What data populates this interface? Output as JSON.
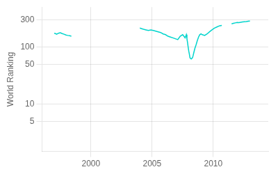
{
  "chart_data": {
    "type": "line",
    "ylabel": "World Ranking",
    "color": "#00d4cc",
    "log": "y",
    "grid": true,
    "xlim": [
      1996.0,
      2014.5
    ],
    "ylim": [
      1.5,
      500
    ],
    "xticks": [
      2000,
      2005,
      2010
    ],
    "yticks": [
      5,
      10,
      50,
      100,
      300
    ],
    "series": [
      {
        "x": [
          1997.0,
          1997.1,
          1997.2,
          1997.35,
          1997.5,
          1997.65,
          1997.8,
          1997.95,
          1998.1,
          1998.25,
          1998.4
        ],
        "values": [
          175,
          172,
          168,
          175,
          178,
          172,
          168,
          163,
          160,
          158,
          155
        ]
      },
      {
        "x": [
          2004.0,
          2004.15,
          2004.3,
          2004.5,
          2004.7,
          2004.9,
          2005.1,
          2005.3,
          2005.5,
          2005.7,
          2005.9,
          2006.1,
          2006.3,
          2006.5,
          2006.7,
          2006.9,
          2007.1,
          2007.3,
          2007.5,
          2007.6,
          2007.7,
          2007.8,
          2007.85,
          2007.9,
          2007.95,
          2008.0,
          2008.05,
          2008.1,
          2008.2,
          2008.3,
          2008.35,
          2008.4,
          2008.5,
          2008.6,
          2008.7,
          2008.8,
          2008.9,
          2009.0,
          2009.1,
          2009.3,
          2009.5,
          2009.7,
          2009.9,
          2010.1,
          2010.3,
          2010.5,
          2010.7
        ],
        "values": [
          215,
          210,
          205,
          200,
          195,
          200,
          195,
          190,
          185,
          180,
          170,
          165,
          155,
          150,
          145,
          140,
          135,
          155,
          165,
          155,
          145,
          165,
          140,
          120,
          100,
          85,
          75,
          65,
          62,
          65,
          70,
          78,
          95,
          110,
          130,
          150,
          165,
          170,
          165,
          160,
          170,
          185,
          200,
          215,
          225,
          235,
          240
        ]
      },
      {
        "x": [
          2011.5,
          2011.65,
          2011.8,
          2011.95,
          2012.1,
          2012.25,
          2012.4,
          2012.55,
          2012.7,
          2012.85,
          2013.0
        ],
        "values": [
          255,
          260,
          265,
          270,
          268,
          272,
          275,
          278,
          280,
          283,
          285
        ]
      }
    ]
  }
}
